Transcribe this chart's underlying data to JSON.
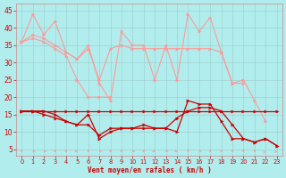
{
  "bg_color": "#b2eded",
  "xlabel": "Vent moyen/en rafales ( km/h )",
  "ylim": [
    3,
    47
  ],
  "xlim": [
    -0.5,
    23.5
  ],
  "yticks": [
    5,
    10,
    15,
    20,
    25,
    30,
    35,
    40,
    45
  ],
  "xticks": [
    0,
    1,
    2,
    3,
    4,
    5,
    6,
    7,
    8,
    9,
    10,
    11,
    12,
    13,
    14,
    15,
    16,
    17,
    18,
    19,
    20,
    21,
    22,
    23
  ],
  "series_light": [
    [
      36,
      44,
      38,
      42,
      33,
      31,
      35,
      24,
      19,
      39,
      35,
      35,
      25,
      35,
      25,
      44,
      39,
      43,
      33,
      24,
      25,
      19,
      13,
      null
    ],
    [
      36,
      38,
      37,
      35,
      33,
      31,
      34,
      25,
      34,
      35,
      34,
      34,
      34,
      34,
      34,
      34,
      34,
      34,
      33,
      24,
      24,
      null,
      null,
      null
    ],
    [
      36,
      37,
      36,
      34,
      32,
      25,
      20,
      20,
      20,
      null,
      null,
      null,
      null,
      null,
      null,
      null,
      null,
      null,
      null,
      null,
      null,
      null,
      null,
      null
    ]
  ],
  "series_dark": [
    [
      16,
      16,
      16,
      15,
      13,
      12,
      15,
      8,
      10,
      11,
      11,
      12,
      11,
      11,
      10,
      19,
      18,
      18,
      13,
      8,
      8,
      7,
      8,
      6
    ],
    [
      16,
      16,
      15,
      14,
      13,
      12,
      12,
      9,
      11,
      11,
      11,
      11,
      11,
      11,
      14,
      16,
      17,
      17,
      16,
      12,
      8,
      7,
      8,
      6
    ],
    [
      16,
      16,
      16,
      16,
      16,
      16,
      16,
      16,
      16,
      16,
      16,
      16,
      16,
      16,
      16,
      16,
      16,
      16,
      16,
      16,
      16,
      16,
      16,
      16
    ]
  ],
  "light_color": "#ff9999",
  "dark_color": "#cc0000",
  "marker_size": 2.5,
  "wind_dirs_angles": [
    0,
    315,
    315,
    0,
    0,
    45,
    0,
    315,
    0,
    0,
    315,
    0,
    45,
    315,
    45,
    0,
    315,
    0,
    0,
    0,
    0,
    0,
    135,
    135
  ]
}
